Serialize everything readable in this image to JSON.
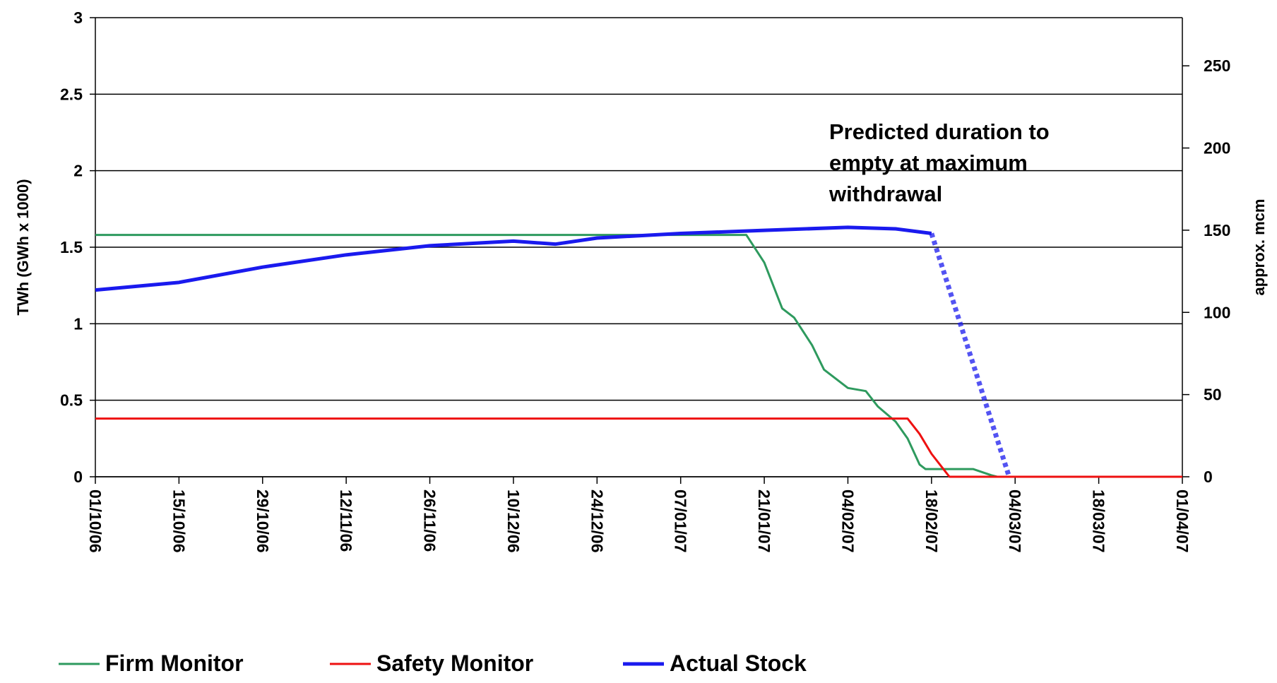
{
  "chart_data": {
    "type": "line",
    "y_label": "TWh (GWh x 1000)",
    "y2_label": "approx. mcm",
    "annotation": [
      "Predicted duration to",
      "empty at maximum",
      "withdrawal"
    ],
    "xlim": [
      "01/10/06",
      "01/04/07"
    ],
    "xticks": [
      "01/10/06",
      "15/10/06",
      "29/10/06",
      "12/11/06",
      "26/11/06",
      "10/12/06",
      "24/12/06",
      "07/01/07",
      "21/01/07",
      "04/02/07",
      "18/02/07",
      "04/03/07",
      "18/03/07",
      "01/04/07"
    ],
    "ylim": [
      0,
      3
    ],
    "yticks": [
      0,
      0.5,
      1,
      1.5,
      2,
      2.5,
      3
    ],
    "y2lim": [
      0,
      279.3
    ],
    "y2ticks": [
      0,
      50,
      100,
      150,
      200,
      250
    ],
    "grid": true,
    "legend": "bottom",
    "series": [
      {
        "name": "Firm Monitor",
        "color": "#2e9a5e",
        "width": 3,
        "x": [
          "01/10/06",
          "18/01/07",
          "21/01/07",
          "24/01/07",
          "26/01/07",
          "29/01/07",
          "31/01/07",
          "04/02/07",
          "07/02/07",
          "09/02/07",
          "12/02/07",
          "14/02/07",
          "16/02/07",
          "17/02/07",
          "25/02/07",
          "28/02/07",
          "01/03/07",
          "01/04/07"
        ],
        "values": [
          1.58,
          1.58,
          1.4,
          1.1,
          1.04,
          0.86,
          0.7,
          0.58,
          0.56,
          0.46,
          0.36,
          0.25,
          0.08,
          0.05,
          0.05,
          0.01,
          0,
          0
        ]
      },
      {
        "name": "Safety Monitor",
        "color": "#ee1111",
        "width": 3,
        "x": [
          "01/10/06",
          "14/02/07",
          "16/02/07",
          "18/02/07",
          "20/02/07",
          "21/02/07",
          "01/04/07"
        ],
        "values": [
          0.38,
          0.38,
          0.28,
          0.15,
          0.05,
          0,
          0
        ]
      },
      {
        "name": "Actual Stock",
        "color": "#1a1aee",
        "width": 5,
        "x": [
          "01/10/06",
          "15/10/06",
          "29/10/06",
          "12/11/06",
          "26/11/06",
          "10/12/06",
          "17/12/06",
          "24/12/06",
          "07/01/07",
          "21/01/07",
          "04/02/07",
          "12/02/07",
          "18/02/07"
        ],
        "values": [
          1.22,
          1.27,
          1.37,
          1.45,
          1.51,
          1.54,
          1.52,
          1.56,
          1.59,
          1.61,
          1.63,
          1.62,
          1.59
        ],
        "projection": {
          "x": [
            "18/02/07",
            "03/03/07"
          ],
          "values": [
            1.59,
            0
          ]
        }
      }
    ]
  }
}
